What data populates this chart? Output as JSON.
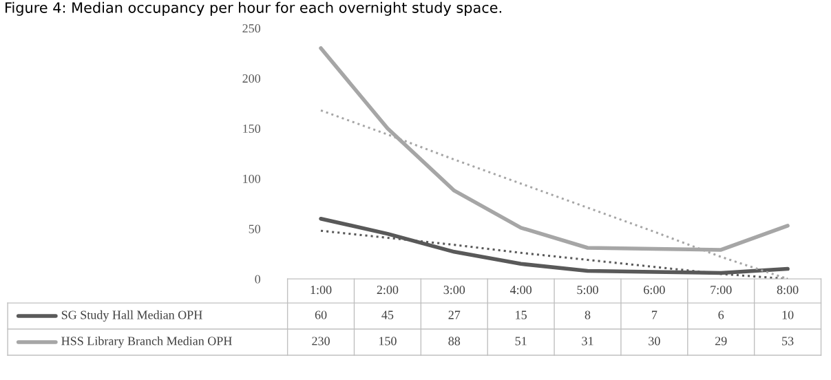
{
  "chart_data": {
    "type": "line",
    "title": "Figure 4: Median occupancy per hour for each overnight study space.",
    "categories": [
      "1:00",
      "2:00",
      "3:00",
      "4:00",
      "5:00",
      "6:00",
      "7:00",
      "8:00"
    ],
    "series": [
      {
        "name": "SG Study Hall Median OPH",
        "color": "#595959",
        "values": [
          60,
          45,
          27,
          15,
          8,
          7,
          6,
          10
        ],
        "value_labels": [
          "60",
          "45",
          "27",
          "15",
          "8",
          "7",
          "6",
          "10"
        ],
        "line_style": "solid"
      },
      {
        "name": "HSS Library Branch Median OPH",
        "color": "#a6a6a6",
        "values": [
          230,
          150,
          88,
          51,
          31,
          30,
          29,
          53
        ],
        "value_labels": [
          "230",
          "150",
          "88",
          "51",
          "31",
          "30",
          "29",
          "53"
        ],
        "line_style": "solid"
      },
      {
        "color": "#595959",
        "values": [
          48,
          41,
          34,
          26,
          19,
          12,
          5,
          0
        ],
        "line_style": "dotted"
      },
      {
        "color": "#a6a6a6",
        "values": [
          168,
          144,
          119,
          95,
          71,
          47,
          22,
          0
        ],
        "line_style": "dotted"
      }
    ],
    "ylim": [
      0,
      250
    ],
    "yticks": [
      0,
      50,
      100,
      150,
      200,
      250
    ],
    "grid": false,
    "legend": "bottom",
    "marker": "none"
  }
}
